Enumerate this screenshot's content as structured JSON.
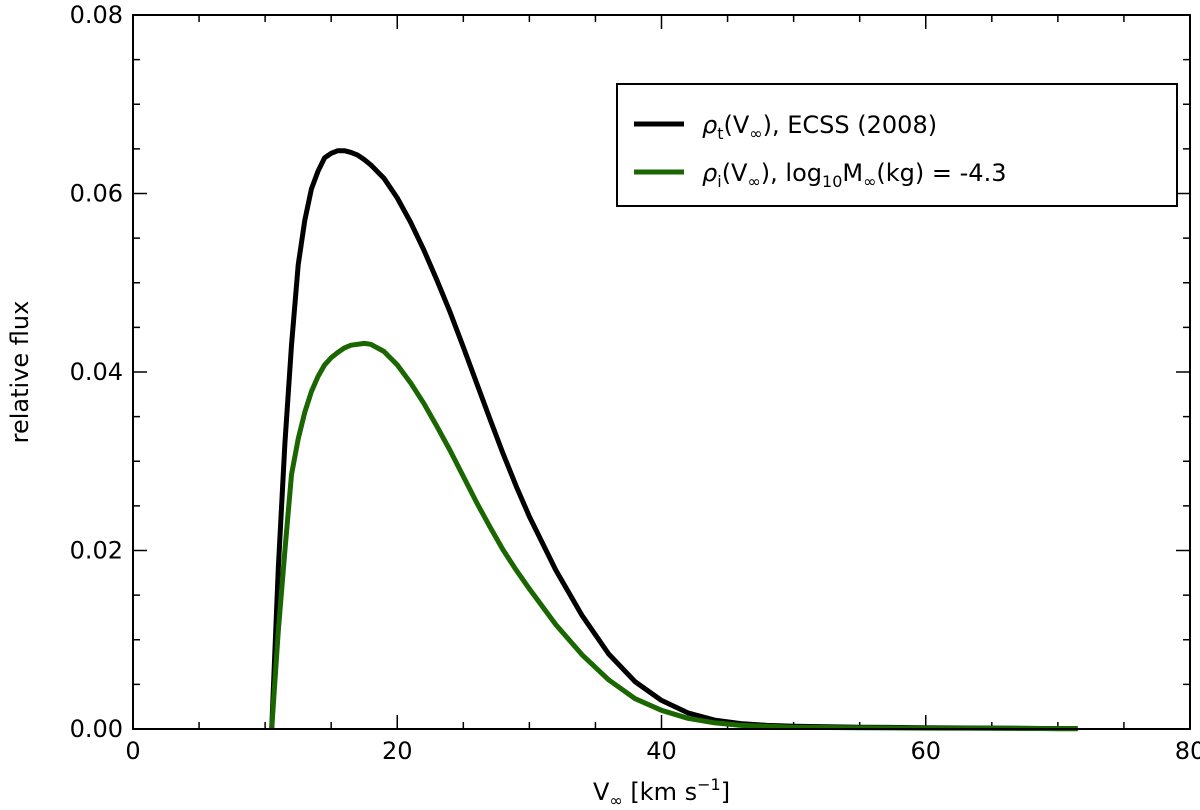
{
  "chart_data": {
    "type": "line",
    "xlabel": {
      "main": "V",
      "sub": "∞",
      "rest": " [km s",
      "sup": "−1",
      "end": "]"
    },
    "ylabel": "relative flux",
    "xlim": [
      0,
      80
    ],
    "ylim": [
      0,
      0.08
    ],
    "x_major_ticks": [
      0,
      20,
      40,
      60,
      80
    ],
    "x_tick_labels": [
      "0",
      "20",
      "40",
      "60",
      "80"
    ],
    "y_major_ticks": [
      0,
      0.02,
      0.04,
      0.06,
      0.08
    ],
    "y_tick_labels": [
      "0.00",
      "0.02",
      "0.04",
      "0.06",
      "0.08"
    ],
    "x_minor_step": 5,
    "y_minor_step": 0.005,
    "grid": false,
    "legend_position": "top-right",
    "series": [
      {
        "name": "ρt(V∞), ECSS (2008)",
        "legend": {
          "main": "ρ",
          "sub": "t",
          "mid": "(V",
          "sub2": "∞",
          "rest": "), ECSS (2008)"
        },
        "color": "#000000",
        "x": [
          10.5,
          11,
          11.5,
          12,
          12.5,
          13,
          13.5,
          14,
          14.5,
          15,
          15.5,
          16,
          16.5,
          17,
          17.5,
          18,
          19,
          20,
          21,
          22,
          23,
          24,
          25,
          26,
          27,
          28,
          29,
          30,
          32,
          34,
          36,
          38,
          40,
          42,
          44,
          46,
          48,
          50,
          55,
          60,
          65,
          70,
          71.5
        ],
        "y": [
          0.0,
          0.018,
          0.032,
          0.043,
          0.052,
          0.057,
          0.0605,
          0.0625,
          0.064,
          0.0645,
          0.0648,
          0.0648,
          0.0646,
          0.0643,
          0.0638,
          0.0632,
          0.0617,
          0.0595,
          0.0568,
          0.0537,
          0.0503,
          0.0467,
          0.0428,
          0.0388,
          0.0348,
          0.0309,
          0.0272,
          0.0238,
          0.0178,
          0.0127,
          0.0084,
          0.0053,
          0.0032,
          0.0018,
          0.001,
          0.0006,
          0.0004,
          0.0003,
          0.0002,
          0.00015,
          0.0001,
          5e-05,
          5e-05
        ]
      },
      {
        "name": "ρi(V∞), log10M∞(kg) = -4.3",
        "legend": {
          "main": "ρ",
          "sub": "i",
          "mid": "(V",
          "sub2": "∞",
          "rest": "), log",
          "sub3": "10",
          "rest2": "M",
          "sub4": "∞",
          "end": "(kg) = -4.3"
        },
        "color": "#1a6600",
        "x": [
          10.5,
          11,
          11.5,
          12,
          12.5,
          13,
          13.5,
          14,
          14.5,
          15,
          15.5,
          16,
          16.5,
          17,
          17.5,
          18,
          19,
          20,
          21,
          22,
          23,
          24,
          25,
          26,
          27,
          28,
          29,
          30,
          32,
          34,
          36,
          38,
          40,
          42,
          44,
          46,
          48,
          50,
          55,
          60,
          65,
          70,
          71.5
        ],
        "y": [
          0.0,
          0.011,
          0.02,
          0.0285,
          0.0325,
          0.0355,
          0.0378,
          0.0395,
          0.0408,
          0.0416,
          0.0422,
          0.0427,
          0.043,
          0.0431,
          0.0432,
          0.0431,
          0.0423,
          0.0408,
          0.0388,
          0.0365,
          0.0339,
          0.0312,
          0.0283,
          0.0254,
          0.0227,
          0.0201,
          0.0178,
          0.0157,
          0.0117,
          0.0083,
          0.0055,
          0.0034,
          0.0021,
          0.0012,
          0.0007,
          0.0004,
          0.0003,
          0.0002,
          0.00015,
          0.0001,
          8e-05,
          5e-05,
          5e-05
        ]
      }
    ]
  }
}
